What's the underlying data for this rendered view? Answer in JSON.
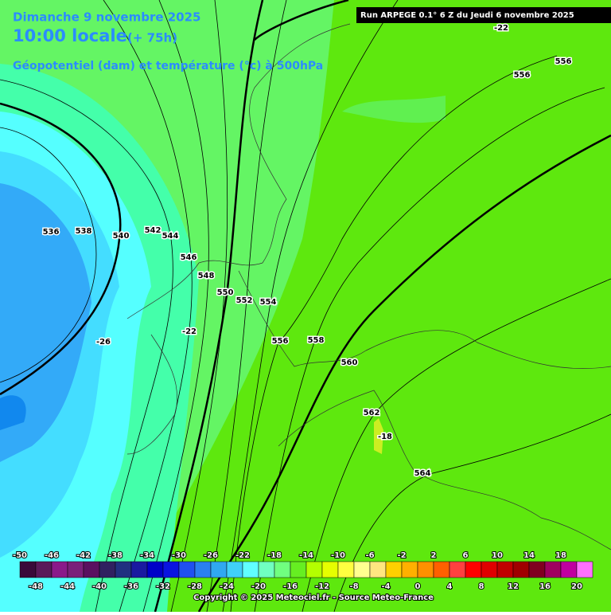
{
  "header": {
    "title": "Dimanche 9 novembre 2025",
    "time": "10:00 locale",
    "lead": "(+ 75h)",
    "subtitle": "Géopotentiel (dam) et température (°c) à 500hPa",
    "run": "Run ARPEGE 0.1° 6 Z du Jeudi 6 novembre 2025"
  },
  "contour_labels": [
    "-22",
    "556",
    "556",
    "536",
    "538",
    "540",
    "542",
    "544",
    "546",
    "548",
    "550",
    "552",
    "554",
    "-22",
    "-26",
    "556",
    "558",
    "560",
    "562",
    "-18",
    "564"
  ],
  "legend": {
    "top_labels": [
      -50,
      -46,
      -42,
      -38,
      -34,
      -30,
      -26,
      -22,
      -18,
      -14,
      -10,
      -6,
      -2,
      2,
      6,
      10,
      14,
      18
    ],
    "bottom_labels": [
      -48,
      -44,
      -40,
      -36,
      -32,
      -28,
      -24,
      -20,
      -16,
      -12,
      -8,
      -4,
      0,
      4,
      8,
      12,
      16,
      20
    ],
    "colors": [
      "#3a0a3a",
      "#5a1a5a",
      "#8a1a8a",
      "#7a207a",
      "#5a1060",
      "#302060",
      "#203080",
      "#1a1aa0",
      "#0000c8",
      "#0a14e0",
      "#2050f0",
      "#2a80f0",
      "#30a8f0",
      "#40d0f8",
      "#60ffff",
      "#70ffc0",
      "#70ff80",
      "#66ee22",
      "#b4ff00",
      "#e6ff00",
      "#ffff40",
      "#ffff90",
      "#ffe680",
      "#ffd000",
      "#ffb000",
      "#ff9000",
      "#ff6000",
      "#ff4040",
      "#ff0000",
      "#e00000",
      "#c00000",
      "#a00000",
      "#800020",
      "#a00060",
      "#c000a0",
      "#ff70ff"
    ]
  },
  "footer": {
    "copyright": "Copyright © 2025 Meteociel.fr - Source Meteo-France"
  }
}
